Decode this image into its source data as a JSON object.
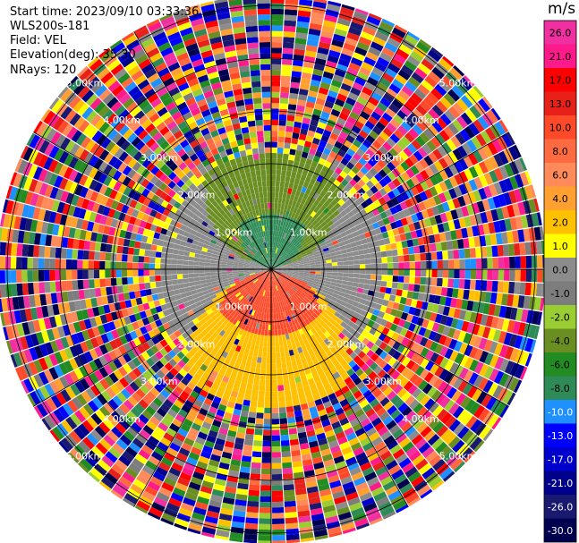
{
  "header": {
    "start_time": "Start time: 2023/09/10 03:33:36",
    "site": "WLS200s-181",
    "field": "Field: VEL",
    "elevation": "Elevation(deg): 35.30",
    "nrays": "NRays: 120"
  },
  "colorbar": {
    "unit": "m/s",
    "ticks": [
      "26.0",
      "21.0",
      "17.0",
      "13.0",
      "10.0",
      "8.0",
      "6.0",
      "4.0",
      "2.0",
      "1.0",
      "0.0",
      "-1.0",
      "-2.0",
      "-4.0",
      "-6.0",
      "-8.0",
      "-10.0",
      "-13.0",
      "-17.0",
      "-21.0",
      "-26.0",
      "-30.0"
    ],
    "colors": [
      "#f02fa0",
      "#ff1a8c",
      "#ff0000",
      "#e8201a",
      "#ff4a2a",
      "#ff6a40",
      "#ff8a5a",
      "#ffa030",
      "#ffc000",
      "#ffff00",
      "#8c8c8c",
      "#7d7d7d",
      "#9acd32",
      "#6b8e23",
      "#228b22",
      "#2e8b57",
      "#1e90ff",
      "#0000ff",
      "#0000cd",
      "#00008b",
      "#191970",
      "#000050"
    ]
  },
  "chart_data": {
    "type": "heatmap",
    "projection": "polar PPI",
    "field": "VEL",
    "rays": 120,
    "range_rings": [
      "1.00km",
      "2.00km",
      "3.00km",
      "4.00km",
      "5.00km"
    ],
    "ring_label_angles_deg": [
      -45,
      45,
      135,
      225
    ],
    "range_max_km": 5.2,
    "colorscale_unit": "m/s",
    "near_field": [
      {
        "region": "north",
        "range_km": [
          0,
          1.0
        ],
        "value": -8.0
      },
      {
        "region": "north",
        "range_km": [
          1.0,
          2.2
        ],
        "value": -4.0
      },
      {
        "region": "south",
        "range_km": [
          0,
          1.2
        ],
        "value": 10.0
      },
      {
        "region": "south",
        "range_km": [
          1.2,
          2.6
        ],
        "value": 2.0
      },
      {
        "region": "east-west",
        "range_km": [
          0,
          2.0
        ],
        "value": 0.0
      }
    ],
    "far_field": "noise (mixed values) beyond ~2.5 km",
    "grid": true
  }
}
